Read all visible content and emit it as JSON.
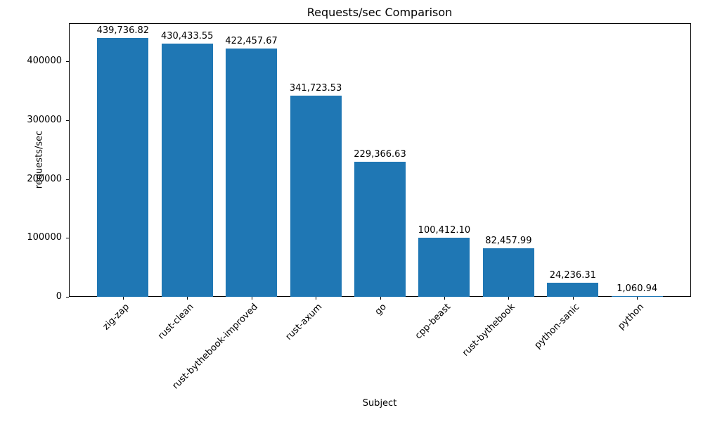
{
  "chart_data": {
    "type": "bar",
    "title": "Requests/sec Comparison",
    "xlabel": "Subject",
    "ylabel": "requests/sec",
    "categories": [
      "zig-zap",
      "rust-clean",
      "rust-bythebook-improved",
      "rust-axum",
      "go",
      "cpp-beast",
      "rust-bythebook",
      "python-sanic",
      "python"
    ],
    "values": [
      439736.82,
      430433.55,
      422457.67,
      341723.53,
      229366.63,
      100412.1,
      82457.99,
      24236.31,
      1060.94
    ],
    "value_labels": [
      "439,736.82",
      "430,433.55",
      "422,457.67",
      "341,723.53",
      "229,366.63",
      "100,412.10",
      "82,457.99",
      "24,236.31",
      "1,060.94"
    ],
    "yticks": [
      0,
      100000,
      200000,
      300000,
      400000
    ],
    "ytick_labels": [
      "0",
      "100000",
      "200000",
      "300000",
      "400000"
    ],
    "ylim": [
      0,
      465000
    ],
    "bar_color": "#1f77b4",
    "bar_width_fraction": 0.8,
    "xtick_rotation_deg": 45,
    "grid": false,
    "legend_position": "none"
  }
}
